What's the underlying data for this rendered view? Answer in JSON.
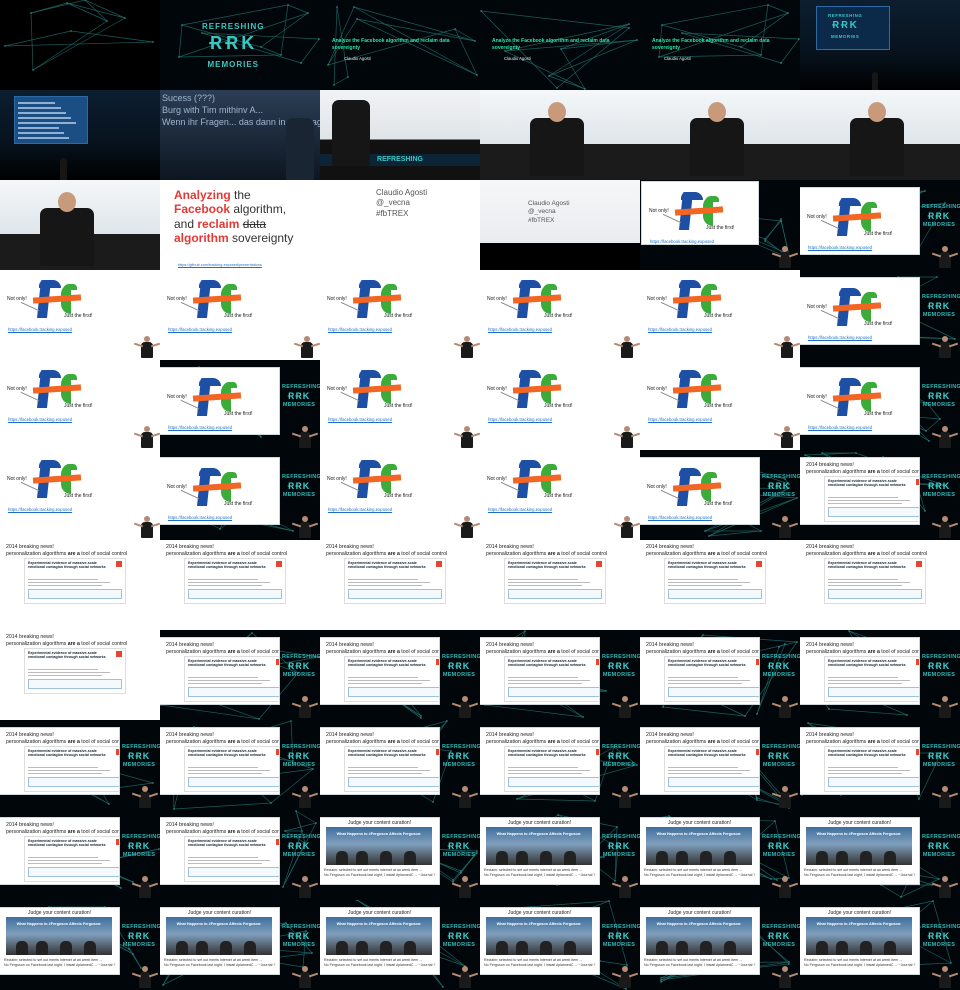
{
  "title_slide": {
    "title": "Analyze the Facebook algorithm and reclaim data sovereignty",
    "author": "Claudio Agosti"
  },
  "brand": {
    "line1": "REFRESHING",
    "line2": "ɌɌK",
    "line3": "MEMORIES"
  },
  "stage_sign": "REFRESHING",
  "projected_text": {
    "line1": "Sucess (???)",
    "line2": "Burg with Tim mithinv A...",
    "line3": "Wenn ihr Fragen... das dann in der Fragerunde"
  },
  "main_slide": {
    "w1": "Analyzing",
    "w2": "the",
    "w3": "Facebook",
    "w4": "algorithm,",
    "w5": "and",
    "w6": "reclaim",
    "w7": "data",
    "w8": "algorithm",
    "w9": "sovereignty",
    "url": "https://github.com/tracking-exposed/presentations"
  },
  "contact": {
    "name": "Claudio Agosti",
    "handle": "@_vecna",
    "tag": "#fbTREX"
  },
  "logo_slide": {
    "not_only": "Not only!",
    "just": "Just the first!",
    "link": "https://facebook.tracking.exposed"
  },
  "news_slide": {
    "line1": "2014 breaking news!",
    "line2_a": "personalization algorithms",
    "line2_b": "are a",
    "line2_c": "tool of social control",
    "paper_title": "Experimental evidence of massive-scale emotional contagion through social networks"
  },
  "judge_slide": {
    "title": "Judge your content curation!",
    "photo_caption": "What Happens to #Ferguson Affects Ferguson:",
    "caption1": "Reclaim: selected to set out meets internet at an week item ...",
    "caption2": "No Ferguson on Facebook last night; I install #plannedC ... ~Journal ?"
  },
  "colors": {
    "background": "#000000",
    "network": "#1f6d6a",
    "brand": "#39c7c1",
    "accent_red": "#e53935",
    "ft_blue": "#1d4fa5",
    "ft_orange": "#f26522",
    "ft_green": "#3bab3a"
  }
}
